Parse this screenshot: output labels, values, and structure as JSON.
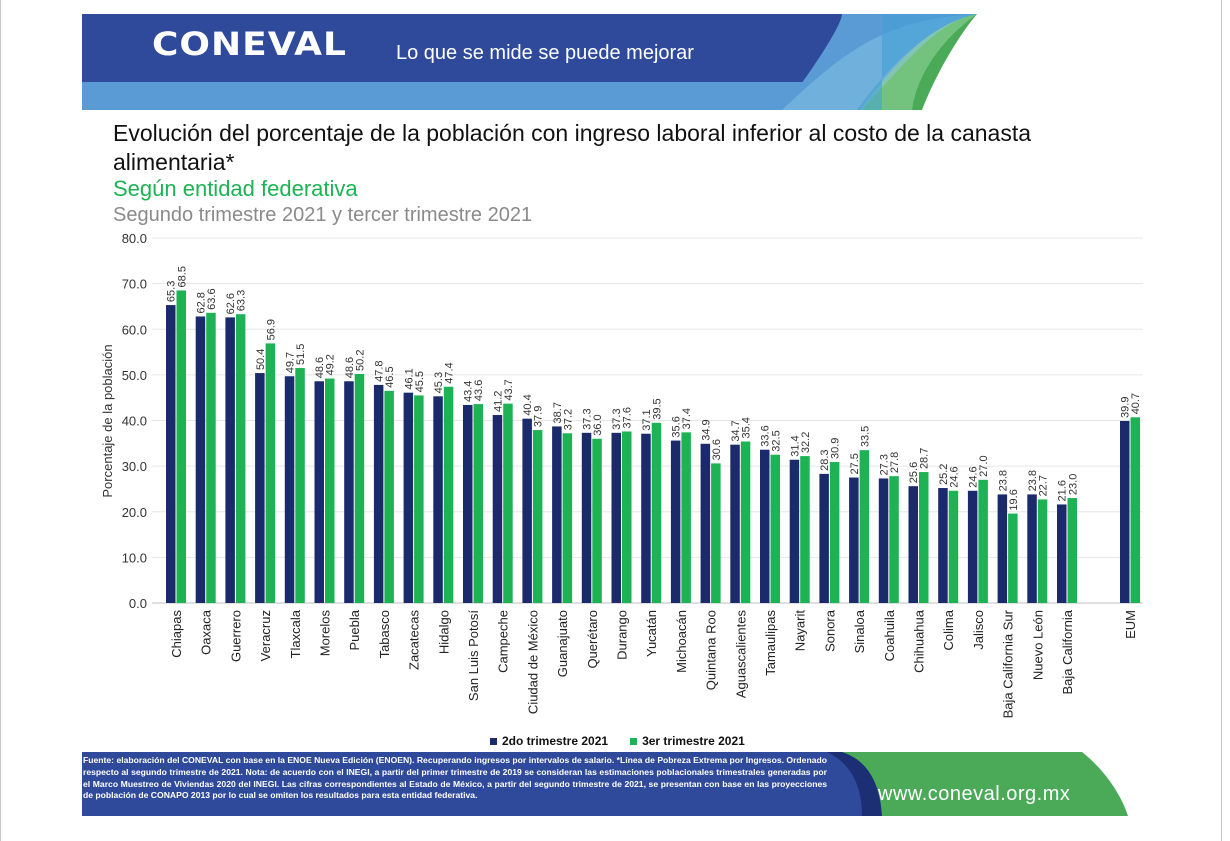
{
  "header": {
    "logo": "CONEVAL",
    "tagline": "Lo que se mide se puede mejorar"
  },
  "titles": {
    "title": "Evolución del porcentaje de la población con ingreso laboral inferior al costo de la canasta alimentaria*",
    "subtitle": "Según entidad federativa",
    "period": "Segundo trimestre 2021 y tercer trimestre 2021"
  },
  "colors": {
    "header_blue": "#2f4a9b",
    "light_blue": "#5b9bd5",
    "green": "#4aaa57",
    "series1": "#1b2a6b",
    "series2": "#1db254"
  },
  "chart_data": {
    "type": "bar",
    "ylabel": "Porcentaje de la población",
    "ylim": [
      0,
      80
    ],
    "yticks": [
      "0.0",
      "10.0",
      "20.0",
      "30.0",
      "40.0",
      "50.0",
      "60.0",
      "70.0",
      "80.0"
    ],
    "grid": true,
    "legend_position": "bottom",
    "categories": [
      "Chiapas",
      "Oaxaca",
      "Guerrero",
      "Veracruz",
      "Tlaxcala",
      "Morelos",
      "Puebla",
      "Tabasco",
      "Zacatecas",
      "Hidalgo",
      "San Luis Potosí",
      "Campeche",
      "Ciudad de México",
      "Guanajuato",
      "Querétaro",
      "Durango",
      "Yucatán",
      "Michoacán",
      "Quintana Roo",
      "Aguascalientes",
      "Tamaulipas",
      "Nayarit",
      "Sonora",
      "Sinaloa",
      "Coahuila",
      "Chihuahua",
      "Colima",
      "Jalisco",
      "Baja California Sur",
      "Nuevo León",
      "Baja California",
      "EUM"
    ],
    "series": [
      {
        "name": "2do trimestre 2021",
        "color": "#1b2a6b",
        "values": [
          65.3,
          62.8,
          62.6,
          50.4,
          49.7,
          48.6,
          48.6,
          47.8,
          46.1,
          45.3,
          43.4,
          41.2,
          40.4,
          38.7,
          37.3,
          37.3,
          37.1,
          35.6,
          34.9,
          34.7,
          33.6,
          31.4,
          28.3,
          27.5,
          27.3,
          25.6,
          25.2,
          24.6,
          23.8,
          23.8,
          21.6,
          39.9
        ],
        "labels": [
          "65.3",
          "62.8",
          "62.6",
          "50.4",
          "49.7",
          "48.6",
          "48.6",
          "47.8",
          "46.1",
          "45.3",
          "43.4",
          "41.2",
          "40.4",
          "38.7",
          "37.3",
          "37.3",
          "37.1",
          "35.6",
          "34.9",
          "34.7",
          "33.6",
          "31.4",
          "28.3",
          "27.5",
          "27.3",
          "25.6",
          "25.2",
          "24.6",
          "23.8",
          "23.8",
          "21.6",
          "39.9"
        ]
      },
      {
        "name": "3er trimestre 2021",
        "color": "#1db254",
        "values": [
          68.5,
          63.6,
          63.3,
          56.9,
          51.5,
          49.2,
          50.2,
          46.5,
          45.5,
          47.4,
          43.6,
          43.7,
          37.9,
          37.2,
          36.0,
          37.6,
          39.5,
          37.4,
          30.6,
          35.4,
          32.5,
          32.2,
          30.9,
          33.5,
          27.8,
          28.7,
          24.6,
          27.0,
          19.6,
          22.7,
          23.0,
          40.7
        ],
        "labels": [
          "68.5",
          "63.6",
          "63.3",
          "56.9",
          "51.5",
          "49.2",
          "50.2",
          "46.5",
          "45.5",
          "47.4",
          "43.6",
          "43.7",
          "37.9",
          "37.2",
          "36.0",
          "37.6",
          "39.5",
          "37.4",
          "30.6",
          "35.4",
          "32.5",
          "32.2",
          "30.9",
          "33.5",
          "27.8",
          "28.7",
          "24.6",
          "27.0",
          "19.6",
          "22.7",
          "23.0",
          "40.7"
        ]
      }
    ]
  },
  "footer": {
    "note": "Fuente: elaboración del CONEVAL con base en la ENOE Nueva Edición (ENOEN). Recuperando ingresos por intervalos de salario. *Línea de Pobreza Extrema por Ingresos. Ordenado respecto al segundo trimestre de 2021. Nota: de acuerdo con el INEGI, a partir del primer trimestre de 2019 se consideran las estimaciones poblacionales trimestrales generadas por el Marco Muestreo de Viviendas 2020 del INEGI. Las cifras correspondientes al Estado de México, a partir del segundo trimestre de 2021, se presentan con base en las proyecciones de población de CONAPO 2013 por lo cual se omiten los resultados para esta entidad federativa.",
    "url": "www.coneval.org.mx"
  }
}
